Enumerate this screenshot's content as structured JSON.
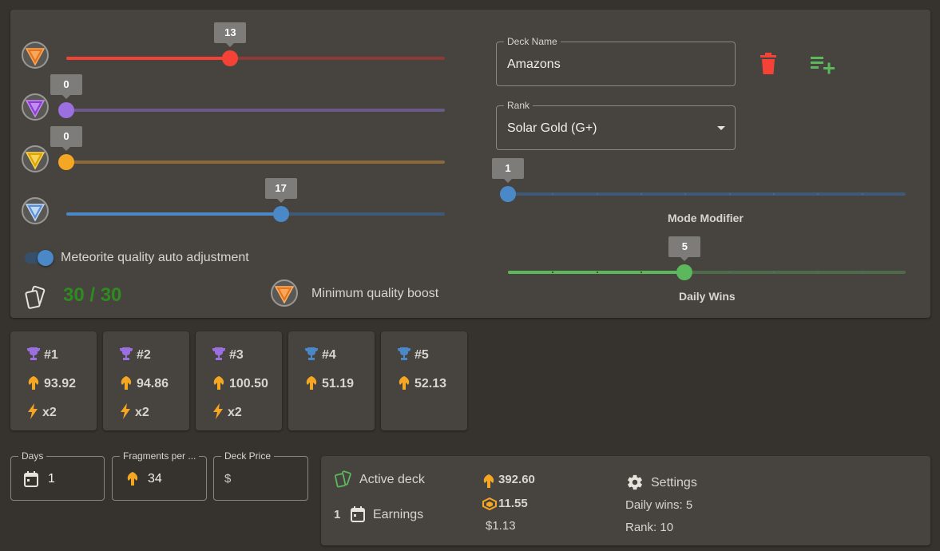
{
  "sliders": [
    {
      "value": 13,
      "max": 30,
      "color": "#f44336",
      "track_color": "#8c3a36",
      "gem": "orange-meteorite-icon"
    },
    {
      "value": 0,
      "max": 30,
      "color": "#9c6fe0",
      "track_color": "#6b5a88",
      "gem": "purple-meteorite-icon"
    },
    {
      "value": 0,
      "max": 30,
      "color": "#f5a623",
      "track_color": "#8a6a38",
      "gem": "gold-meteorite-icon"
    },
    {
      "value": 17,
      "max": 30,
      "color": "#4a88c7",
      "track_color": "#3d5a78",
      "gem": "blue-meteorite-icon"
    }
  ],
  "labels": {
    "auto_adjust": "Meteorite quality auto adjustment",
    "card_count": "30 / 30",
    "min_quality_boost": "Minimum quality boost",
    "mode_modifier": "Mode Modifier",
    "daily_wins": "Daily Wins"
  },
  "deck": {
    "name_legend": "Deck Name",
    "name_value": "Amazons",
    "rank_legend": "Rank",
    "rank_value": "Solar Gold (G+)"
  },
  "mode_modifier": {
    "value": 1,
    "min": 1,
    "max": 10,
    "color": "#4a88c7",
    "track_color": "#3d5a78"
  },
  "daily_wins_slider": {
    "value": 5,
    "min": 1,
    "max": 10,
    "color": "#5cb85c",
    "track_color": "#4d6b4a"
  },
  "ranks": [
    {
      "label": "#1",
      "trophy": "#9c6fe0",
      "fragments": "93.92",
      "boost": "x2"
    },
    {
      "label": "#2",
      "trophy": "#9c6fe0",
      "fragments": "94.86",
      "boost": "x2"
    },
    {
      "label": "#3",
      "trophy": "#9c6fe0",
      "fragments": "100.50",
      "boost": "x2"
    },
    {
      "label": "#4",
      "trophy": "#4a88c7",
      "fragments": "51.19",
      "boost": ""
    },
    {
      "label": "#5",
      "trophy": "#4a88c7",
      "fragments": "52.13",
      "boost": ""
    }
  ],
  "inputs": {
    "days_legend": "Days",
    "days_value": "1",
    "fragments_legend": "Fragments per ...",
    "fragments_value": "34",
    "price_legend": "Deck Price",
    "price_value": "$"
  },
  "summary": {
    "active_deck": "Active deck",
    "days": "1",
    "earnings": "Earnings",
    "fragments": "392.60",
    "tokens": "11.55",
    "usd": "$1.13",
    "settings": "Settings",
    "daily_wins": "Daily wins: 5",
    "rank": "Rank: 10"
  },
  "colors": {
    "accent_blue": "#4a88c7",
    "delete_red": "#f44336",
    "add_green": "#5cb85c",
    "count_green": "#2e8b1f",
    "fragment_orange": "#f5a623"
  }
}
